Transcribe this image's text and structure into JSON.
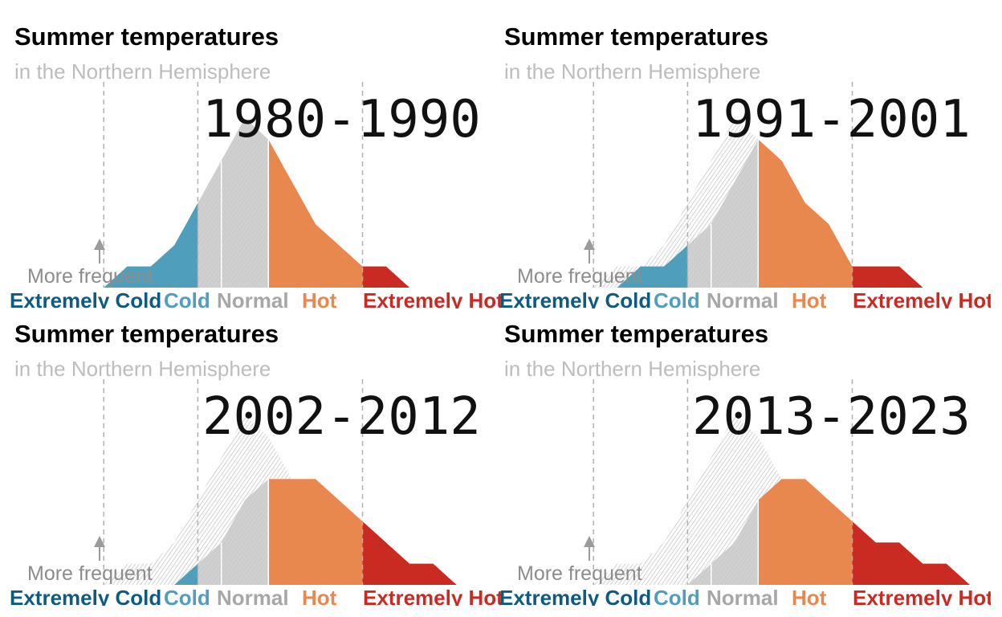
{
  "chart_data": [
    {
      "type": "area",
      "title": "Summer temperatures",
      "subtitle": "in the Northern Hemisphere",
      "period": "1980-1990",
      "annotation": "More frequent",
      "categories": [
        "Extremely Cold",
        "Cold",
        "Normal",
        "Hot",
        "Extremely Hot"
      ],
      "x": [
        -5,
        -4.5,
        -4,
        -3.5,
        -3,
        -2.5,
        -2,
        -1.5,
        -1,
        -0.5,
        0,
        0.5,
        1,
        1.5,
        2,
        2.5,
        3,
        3.5,
        4,
        4.5,
        5
      ],
      "baseline": [
        0.0,
        0.0,
        0.0,
        0.0,
        0.0,
        0.01,
        0.01,
        0.02,
        0.04,
        0.06,
        0.08,
        0.07,
        0.05,
        0.03,
        0.02,
        0.01,
        0.01,
        0.0,
        0.0,
        0.0,
        0.0
      ],
      "values": [
        0.0,
        0.0,
        0.0,
        0.0,
        0.0,
        0.01,
        0.01,
        0.02,
        0.04,
        0.06,
        0.08,
        0.07,
        0.05,
        0.03,
        0.02,
        0.01,
        0.01,
        0.0,
        0.0,
        0.0,
        0.0
      ],
      "xlim": [
        -5,
        5
      ],
      "ylim": [
        0,
        0.085
      ],
      "thresholds": [
        -3,
        -1,
        -0.5,
        0.5,
        2.5
      ],
      "colors": {
        "extremely_cold": "#0d5b80",
        "cold": "#4f9fbc",
        "normal": "#c8c8c8",
        "hot": "#e8884f",
        "extremely_hot": "#c92b23",
        "baseline": "#d2d2d2"
      }
    },
    {
      "type": "area",
      "title": "Summer temperatures",
      "subtitle": "in the Northern Hemisphere",
      "period": "1991-2001",
      "annotation": "More frequent",
      "categories": [
        "Extremely Cold",
        "Cold",
        "Normal",
        "Hot",
        "Extremely Hot"
      ],
      "x": [
        -5,
        -4.5,
        -4,
        -3.5,
        -3,
        -2.5,
        -2,
        -1.5,
        -1,
        -0.5,
        0,
        0.5,
        1,
        1.5,
        2,
        2.5,
        3,
        3.5,
        4,
        4.5,
        5
      ],
      "baseline": [
        0.0,
        0.0,
        0.0,
        0.0,
        0.0,
        0.01,
        0.01,
        0.02,
        0.04,
        0.06,
        0.08,
        0.07,
        0.05,
        0.03,
        0.02,
        0.01,
        0.01,
        0.0,
        0.0,
        0.0,
        0.0
      ],
      "values": [
        0.0,
        0.0,
        0.0,
        0.0,
        0.0,
        0.0,
        0.01,
        0.01,
        0.02,
        0.03,
        0.05,
        0.07,
        0.06,
        0.04,
        0.03,
        0.01,
        0.01,
        0.01,
        0.0,
        0.0,
        0.0
      ],
      "xlim": [
        -5,
        5
      ],
      "ylim": [
        0,
        0.085
      ],
      "thresholds": [
        -3,
        -1,
        -0.5,
        0.5,
        2.5
      ],
      "colors": {
        "extremely_cold": "#0d5b80",
        "cold": "#4f9fbc",
        "normal": "#c8c8c8",
        "hot": "#e8884f",
        "extremely_hot": "#c92b23",
        "baseline": "#d2d2d2"
      }
    },
    {
      "type": "area",
      "title": "Summer temperatures",
      "subtitle": "in the Northern Hemisphere",
      "period": "2002-2012",
      "annotation": "More frequent",
      "categories": [
        "Extremely Cold",
        "Cold",
        "Normal",
        "Hot",
        "Extremely Hot"
      ],
      "x": [
        -5,
        -4.5,
        -4,
        -3.5,
        -3,
        -2.5,
        -2,
        -1.5,
        -1,
        -0.5,
        0,
        0.5,
        1,
        1.5,
        2,
        2.5,
        3,
        3.5,
        4,
        4.5,
        5
      ],
      "baseline": [
        0.0,
        0.0,
        0.0,
        0.0,
        0.0,
        0.01,
        0.01,
        0.02,
        0.04,
        0.06,
        0.08,
        0.07,
        0.05,
        0.03,
        0.02,
        0.01,
        0.01,
        0.0,
        0.0,
        0.0,
        0.0
      ],
      "values": [
        0.0,
        0.0,
        0.0,
        0.0,
        0.0,
        0.0,
        0.0,
        0.0,
        0.01,
        0.02,
        0.04,
        0.05,
        0.05,
        0.05,
        0.04,
        0.03,
        0.02,
        0.01,
        0.01,
        0.0,
        0.0
      ],
      "xlim": [
        -5,
        5
      ],
      "ylim": [
        0,
        0.085
      ],
      "thresholds": [
        -3,
        -1,
        -0.5,
        0.5,
        2.5
      ],
      "colors": {
        "extremely_cold": "#0d5b80",
        "cold": "#4f9fbc",
        "normal": "#c8c8c8",
        "hot": "#e8884f",
        "extremely_hot": "#c92b23",
        "baseline": "#d2d2d2"
      }
    },
    {
      "type": "area",
      "title": "Summer temperatures",
      "subtitle": "in the Northern Hemisphere",
      "period": "2013-2023",
      "annotation": "More frequent",
      "categories": [
        "Extremely Cold",
        "Cold",
        "Normal",
        "Hot",
        "Extremely Hot"
      ],
      "x": [
        -5,
        -4.5,
        -4,
        -3.5,
        -3,
        -2.5,
        -2,
        -1.5,
        -1,
        -0.5,
        0,
        0.5,
        1,
        1.5,
        2,
        2.5,
        3,
        3.5,
        4,
        4.5,
        5
      ],
      "baseline": [
        0.0,
        0.0,
        0.0,
        0.0,
        0.0,
        0.01,
        0.01,
        0.02,
        0.04,
        0.06,
        0.08,
        0.07,
        0.05,
        0.03,
        0.02,
        0.01,
        0.01,
        0.0,
        0.0,
        0.0,
        0.0
      ],
      "values": [
        0.0,
        0.0,
        0.0,
        0.0,
        0.0,
        0.0,
        0.0,
        0.0,
        0.0,
        0.01,
        0.02,
        0.04,
        0.05,
        0.05,
        0.04,
        0.03,
        0.02,
        0.02,
        0.01,
        0.01,
        0.0
      ],
      "xlim": [
        -5,
        5
      ],
      "ylim": [
        0,
        0.085
      ],
      "thresholds": [
        -3,
        -1,
        -0.5,
        0.5,
        2.5
      ],
      "colors": {
        "extremely_cold": "#0d5b80",
        "cold": "#4f9fbc",
        "normal": "#c8c8c8",
        "hot": "#e8884f",
        "extremely_hot": "#c92b23",
        "baseline": "#d2d2d2"
      }
    }
  ]
}
